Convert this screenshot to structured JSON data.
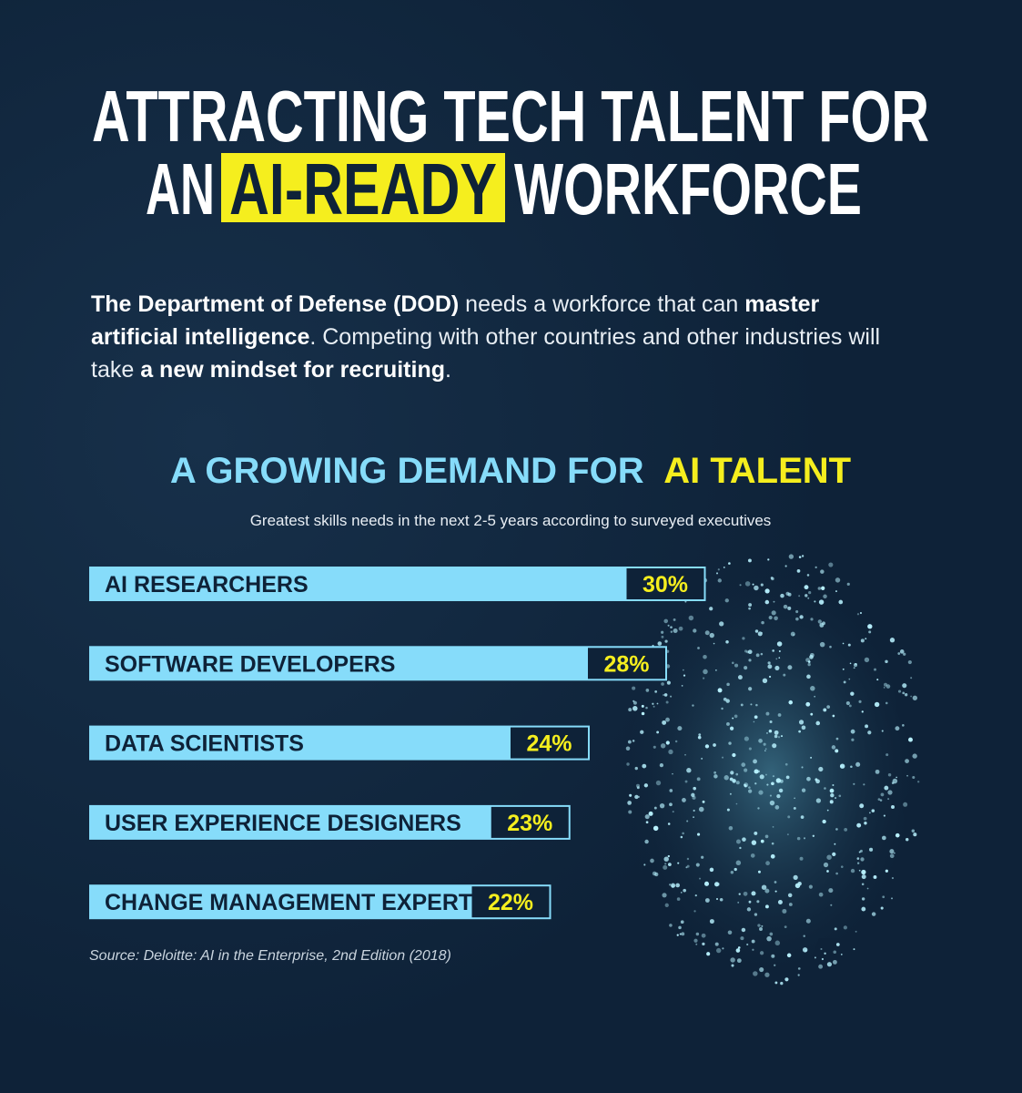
{
  "header": {
    "line1": "ATTRACTING TECH TALENT FOR",
    "line2_start": "AN",
    "line2_highlight": "AI-READY",
    "line2_end": "WORKFORCE"
  },
  "intro": [
    {
      "text": "The Department of Defense (DOD)",
      "bold": true
    },
    {
      "text": " needs a workforce that can ",
      "bold": false
    },
    {
      "text": "master artificial intelligence",
      "bold": true
    },
    {
      "text": ". Competing with other countries and other industries will take ",
      "bold": false
    },
    {
      "text": "a new mindset for recruiting",
      "bold": true
    },
    {
      "text": ".",
      "bold": false
    }
  ],
  "chart_data": {
    "type": "bar",
    "orientation": "horizontal",
    "title": "A GROWING DEMAND FOR",
    "title_highlight": "AI TALENT",
    "subtitle": "Greatest skills needs in the next 2-5 years according to surveyed executives",
    "categories": [
      "AI RESEARCHERS",
      "SOFTWARE DEVELOPERS",
      "DATA SCIENTISTS",
      "USER EXPERIENCE DESIGNERS",
      "CHANGE MANAGEMENT EXPERTS"
    ],
    "values": [
      30,
      28,
      24,
      23,
      22
    ],
    "value_labels": [
      "30%",
      "28%",
      "24%",
      "23%",
      "22%"
    ],
    "color": "#86dcfa",
    "source": "Source: Deloitte: AI in the Enterprise, 2nd Edition (2018)"
  }
}
